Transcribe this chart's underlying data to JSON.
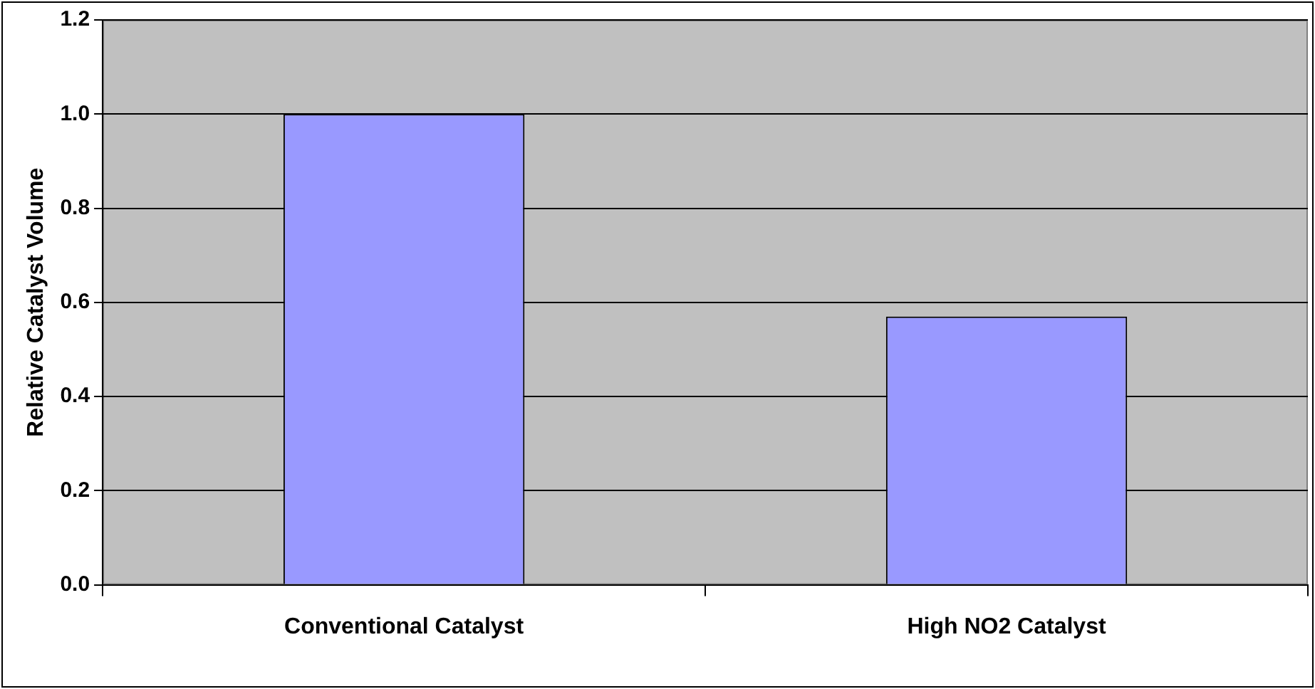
{
  "chart_data": {
    "type": "bar",
    "ylabel": "Relative Catalyst Volume",
    "categories": [
      "Conventional Catalyst",
      "High NO2 Catalyst"
    ],
    "values": [
      1.0,
      0.57
    ],
    "color": "#9999ff",
    "ylim": [
      0,
      1.2
    ],
    "yticks": [
      {
        "value": 0,
        "label": "0.0"
      },
      0.2,
      0.4,
      0.6,
      0.8,
      {
        "value": 1,
        "label": "1.0"
      },
      1.2
    ],
    "grid": "y",
    "legend": false
  }
}
